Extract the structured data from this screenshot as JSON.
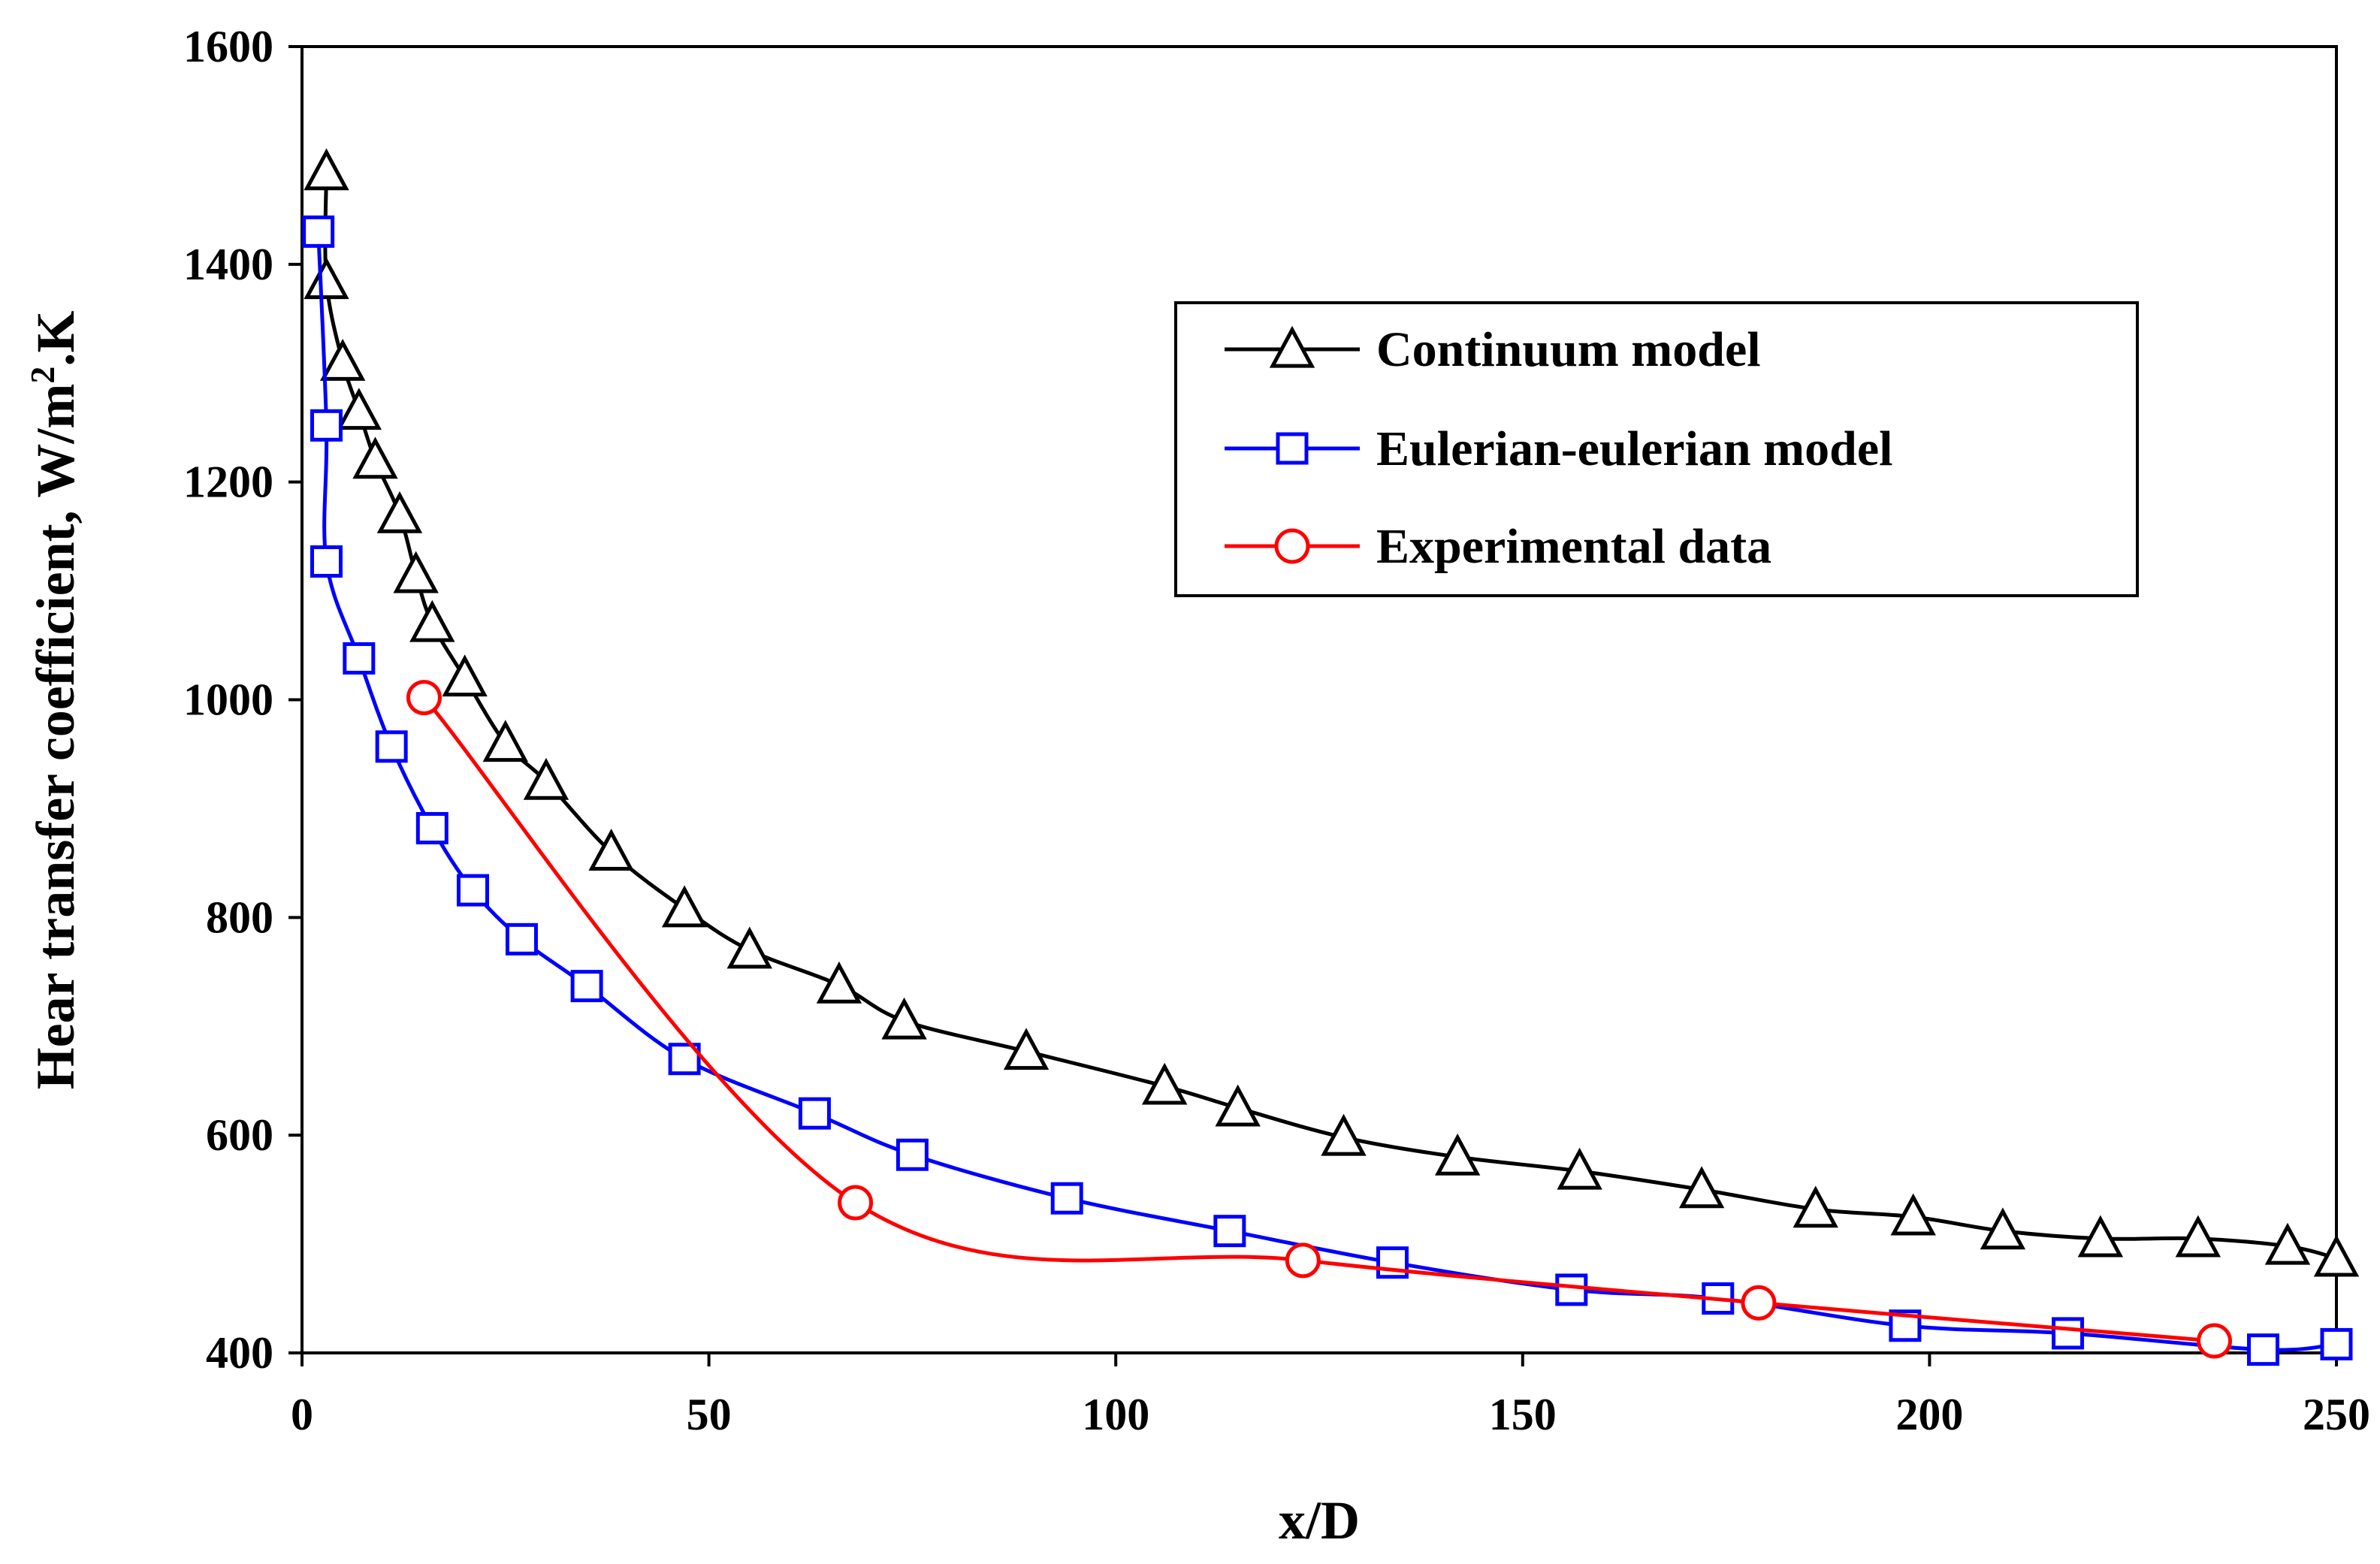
{
  "chart_data": {
    "type": "line",
    "title": "",
    "xlabel": "x/D",
    "ylabel": {
      "main": "Hear transfer coefficient, W/m",
      "superscript": "2",
      "suffix": ".K"
    },
    "xlim": [
      0,
      250
    ],
    "ylim": [
      400,
      1600
    ],
    "x_ticks": [
      0,
      50,
      100,
      150,
      200,
      250
    ],
    "y_ticks": [
      400,
      600,
      800,
      1000,
      1200,
      1400,
      1600
    ],
    "grid": false,
    "legend_position": "top-right",
    "series": [
      {
        "name": "Continuum model",
        "color": "#000000",
        "marker": "triangle",
        "x": [
          3,
          3,
          5,
          7,
          9,
          12,
          14,
          16,
          20,
          25,
          30,
          38,
          47,
          55,
          66,
          74,
          89,
          106,
          115,
          128,
          142,
          157,
          172,
          186,
          198,
          209,
          221,
          233,
          244,
          250
        ],
        "y": [
          1485,
          1385,
          1310,
          1265,
          1220,
          1170,
          1115,
          1070,
          1020,
          960,
          925,
          860,
          808,
          770,
          738,
          705,
          677,
          645,
          625,
          598,
          580,
          567,
          550,
          532,
          525,
          512,
          505,
          505,
          498,
          487
        ]
      },
      {
        "name": "Eulerian-eulerian model",
        "color": "#0000ff",
        "marker": "square",
        "x": [
          2,
          3,
          3,
          7,
          11,
          16,
          21,
          27,
          35,
          47,
          63,
          75,
          94,
          114,
          134,
          156,
          174,
          197,
          217,
          241,
          250
        ],
        "y": [
          1430,
          1252,
          1127,
          1038,
          957,
          882,
          825,
          780,
          737,
          670,
          620,
          582,
          542,
          512,
          483,
          458,
          450,
          425,
          418,
          403,
          408
        ]
      },
      {
        "name": "Experimental data",
        "color": "#ff0000",
        "marker": "circle",
        "x": [
          15,
          68,
          123,
          179,
          235
        ],
        "y": [
          1002,
          538,
          485,
          446,
          411
        ]
      }
    ]
  }
}
